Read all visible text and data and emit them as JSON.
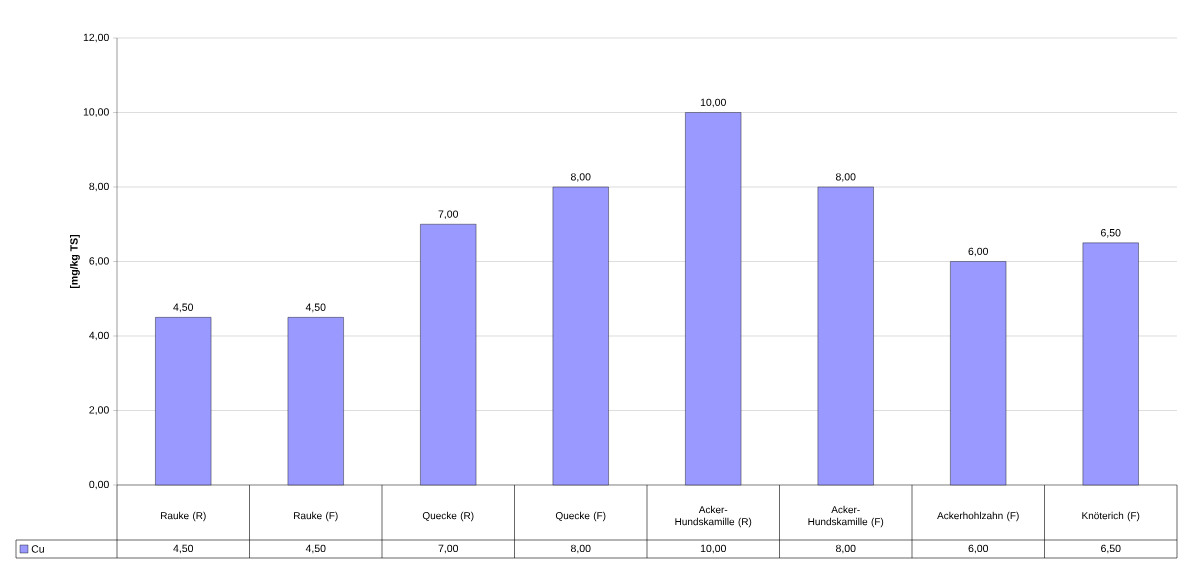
{
  "chart_data": {
    "type": "bar",
    "ylabel": "[mg/kg TS]",
    "categories": [
      "Rauke (R)",
      "Rauke (F)",
      "Quecke (R)",
      "Quecke (F)",
      "Acker-Hundskamille (R)",
      "Acker-Hundskamille (F)",
      "Ackerhohlzahn (F)",
      "Knöterich (F)"
    ],
    "series": [
      {
        "name": "Cu",
        "color": "#9999ff",
        "values": [
          4.5,
          4.5,
          7.0,
          8.0,
          10.0,
          8.0,
          6.0,
          6.5
        ],
        "value_labels": [
          "4,50",
          "4,50",
          "7,00",
          "8,00",
          "10,00",
          "8,00",
          "6,00",
          "6,50"
        ]
      }
    ],
    "ylim": [
      0,
      12
    ],
    "yticks": [
      {
        "value": 0,
        "label": "0,00"
      },
      {
        "value": 2,
        "label": "2,00"
      },
      {
        "value": 4,
        "label": "4,00"
      },
      {
        "value": 6,
        "label": "6,00"
      },
      {
        "value": 8,
        "label": "8,00"
      },
      {
        "value": 10,
        "label": "10,00"
      },
      {
        "value": 12,
        "label": "12,00"
      }
    ],
    "grid": "y",
    "legend": "bottom left"
  }
}
